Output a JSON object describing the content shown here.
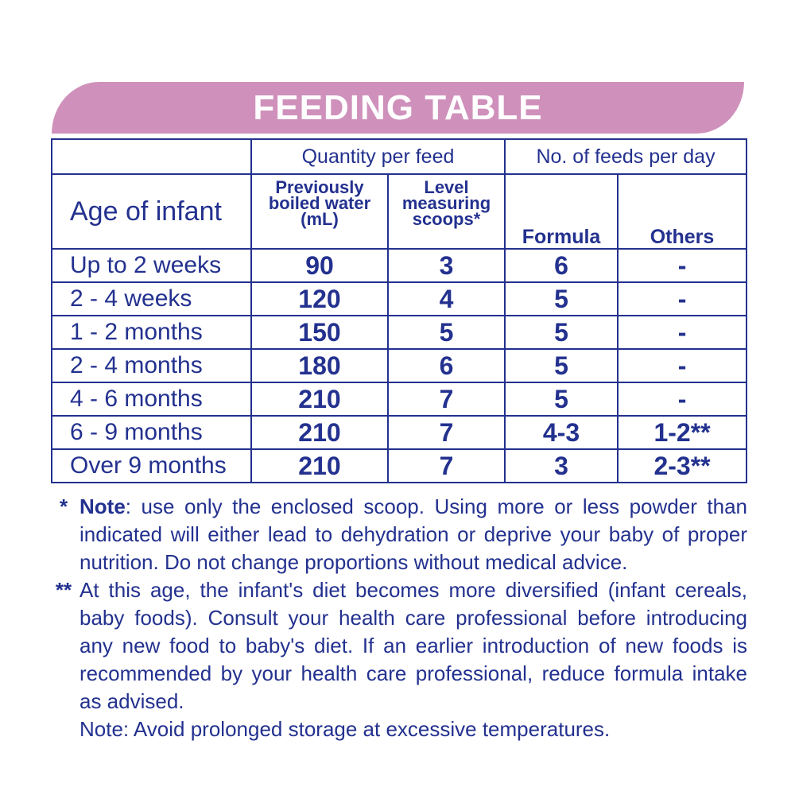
{
  "title": "FEEDING TABLE",
  "headers": {
    "quantity_group": "Quantity per feed",
    "feeds_group": "No. of feeds per day",
    "age": "Age of infant",
    "water": "Previously boiled water (mL)",
    "scoops": "Level measuring scoops*",
    "formula": "Formula",
    "others": "Others"
  },
  "rows": [
    {
      "age": "Up to 2 weeks",
      "water": "90",
      "scoops": "3",
      "formula": "6",
      "others": "-"
    },
    {
      "age": "2 - 4 weeks",
      "water": "120",
      "scoops": "4",
      "formula": "5",
      "others": "-"
    },
    {
      "age": "1 - 2 months",
      "water": "150",
      "scoops": "5",
      "formula": "5",
      "others": "-"
    },
    {
      "age": "2 - 4 months",
      "water": "180",
      "scoops": "6",
      "formula": "5",
      "others": "-"
    },
    {
      "age": "4 - 6 months",
      "water": "210",
      "scoops": "7",
      "formula": "5",
      "others": "-"
    },
    {
      "age": "6 - 9 months",
      "water": "210",
      "scoops": "7",
      "formula": "4-3",
      "others": "1-2**"
    },
    {
      "age": "Over 9 months",
      "water": "210",
      "scoops": "7",
      "formula": "3",
      "others": "2-3**"
    }
  ],
  "notes": {
    "note1_mark": "*",
    "note1_label": "Note",
    "note1_text": ": use only the enclosed scoop. Using more or less powder than indicated will either lead to dehydration or deprive your baby of proper nutrition. Do not change proportions without medical advice.",
    "note2_mark": "**",
    "note2_text": "At this age, the infant's diet becomes more diversified (infant cereals, baby foods). Consult your health care professional before introducing any new food to baby's diet. If an earlier introduction of new foods is recommended by your health care professional, reduce formula intake as advised.",
    "note3_text": "Note: Avoid prolonged storage at excessive temperatures."
  },
  "colors": {
    "text": "#23318f",
    "banner": "#cf91bb",
    "banner_text": "#ffffff"
  }
}
